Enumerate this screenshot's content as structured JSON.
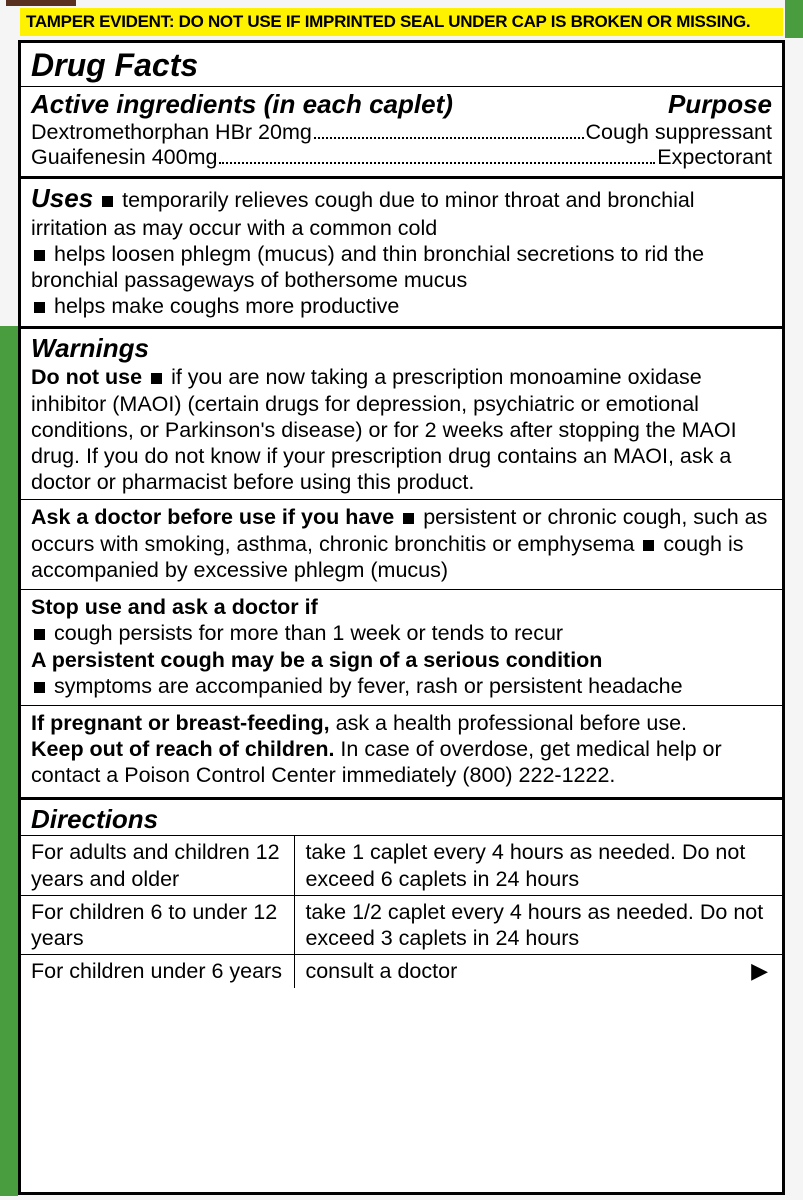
{
  "tamper": "TAMPER EVIDENT: DO NOT USE IF IMPRINTED SEAL UNDER CAP IS BROKEN OR MISSING.",
  "title": "Drug Facts",
  "ingredients": {
    "heading": "Active ingredients (in each caplet)",
    "purposeHeading": "Purpose",
    "items": [
      {
        "name": "Dextromethorphan HBr 20mg",
        "purpose": "Cough suppressant"
      },
      {
        "name": "Guaifenesin 400mg",
        "purpose": "Expectorant"
      }
    ]
  },
  "uses": {
    "heading": "Uses",
    "b1": "temporarily relieves cough due to minor throat and bronchial irritation as may occur with a common cold",
    "b2": "helps loosen phlegm (mucus) and thin bronchial secretions to rid the bronchial passageways of bothersome mucus",
    "b3": "helps make coughs more productive"
  },
  "warnings": {
    "heading": "Warnings",
    "dnuLabel": "Do not use",
    "dnuText": "if you are now taking a prescription monoamine oxidase inhibitor (MAOI) (certain drugs for depression, psychiatric or emotional conditions, or Parkinson's disease) or for 2 weeks after stopping the MAOI drug. If you do not know if your prescription drug contains an MAOI, ask a doctor or pharmacist before using this product.",
    "askLabel": "Ask a doctor before use if you have",
    "ask1": "persistent or chronic cough, such as occurs with smoking, asthma, chronic bronchitis or emphysema",
    "ask2": "cough is accompanied by excessive phlegm (mucus)",
    "stopLabel": "Stop use and ask a doctor if",
    "stop1": "cough persists for more than 1 week or tends to recur",
    "stopBold": "A persistent cough may be a sign of a serious condition",
    "stop2": "symptoms are accompanied by fever, rash or persistent headache",
    "pregLabel": "If pregnant or breast-feeding,",
    "pregText": "ask a health professional before use.",
    "keepLabel": "Keep out of reach of children.",
    "keepText": "In case of overdose, get medical help or contact a Poison Control Center immediately (800) 222-1222."
  },
  "directions": {
    "heading": "Directions",
    "rows": [
      {
        "who": "For adults and children 12 years and older",
        "dose": "take 1 caplet every 4 hours as needed. Do not exceed 6 caplets in 24 hours"
      },
      {
        "who": "For children 6 to under 12 years",
        "dose": "take 1/2 caplet every 4 hours as needed. Do not exceed 3 caplets in 24 hours"
      },
      {
        "who": "For children under 6 years",
        "dose": "consult a doctor"
      }
    ],
    "arrow": "▶"
  }
}
